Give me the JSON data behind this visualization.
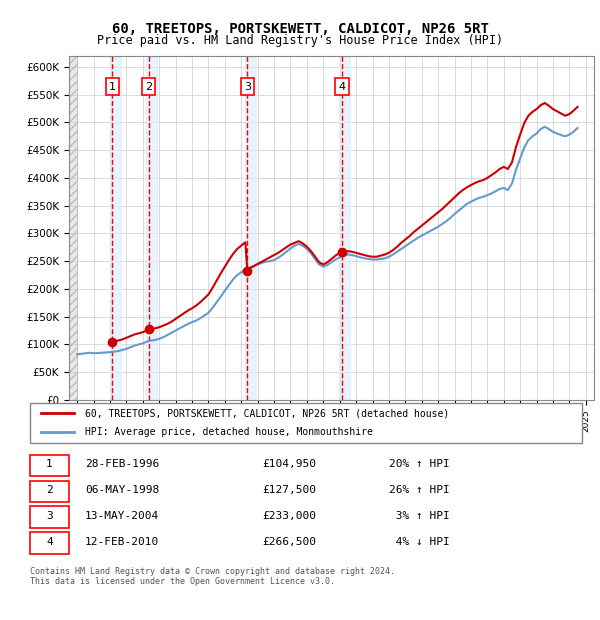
{
  "title": "60, TREETOPS, PORTSKEWETT, CALDICOT, NP26 5RT",
  "subtitle": "Price paid vs. HM Land Registry's House Price Index (HPI)",
  "footer": "Contains HM Land Registry data © Crown copyright and database right 2024.\nThis data is licensed under the Open Government Licence v3.0.",
  "legend_line1": "60, TREETOPS, PORTSKEWETT, CALDICOT, NP26 5RT (detached house)",
  "legend_line2": "HPI: Average price, detached house, Monmouthshire",
  "transactions": [
    {
      "num": 1,
      "date": "28-FEB-1996",
      "price": 104950,
      "pct": "20%",
      "dir": "↑",
      "year": 1996.15
    },
    {
      "num": 2,
      "date": "06-MAY-1998",
      "price": 127500,
      "pct": "26%",
      "dir": "↑",
      "year": 1998.35
    },
    {
      "num": 3,
      "date": "13-MAY-2004",
      "price": 233000,
      "pct": "3%",
      "dir": "↑",
      "year": 2004.37
    },
    {
      "num": 4,
      "date": "12-FEB-2010",
      "price": 266500,
      "pct": "4%",
      "dir": "↓",
      "year": 2010.12
    }
  ],
  "ylim": [
    0,
    620000
  ],
  "yticks": [
    0,
    50000,
    100000,
    150000,
    200000,
    250000,
    300000,
    350000,
    400000,
    450000,
    500000,
    550000,
    600000
  ],
  "xlim": [
    1993.5,
    2025.5
  ],
  "xticks": [
    1994,
    1995,
    1996,
    1997,
    1998,
    1999,
    2000,
    2001,
    2002,
    2003,
    2004,
    2005,
    2006,
    2007,
    2008,
    2009,
    2010,
    2011,
    2012,
    2013,
    2014,
    2015,
    2016,
    2017,
    2018,
    2019,
    2020,
    2021,
    2022,
    2023,
    2024,
    2025
  ],
  "hpi_color": "#6699cc",
  "price_color": "#cc0000",
  "transaction_color": "#cc0000",
  "shading_color": "#ddeeff",
  "hatch_color": "#cccccc",
  "grid_color": "#cccccc",
  "background_left_color": "#f0f0f0",
  "hpi_data": {
    "years": [
      1994.0,
      1994.25,
      1994.5,
      1994.75,
      1995.0,
      1995.25,
      1995.5,
      1995.75,
      1996.0,
      1996.25,
      1996.5,
      1996.75,
      1997.0,
      1997.25,
      1997.5,
      1997.75,
      1998.0,
      1998.25,
      1998.5,
      1998.75,
      1999.0,
      1999.25,
      1999.5,
      1999.75,
      2000.0,
      2000.25,
      2000.5,
      2000.75,
      2001.0,
      2001.25,
      2001.5,
      2001.75,
      2002.0,
      2002.25,
      2002.5,
      2002.75,
      2003.0,
      2003.25,
      2003.5,
      2003.75,
      2004.0,
      2004.25,
      2004.5,
      2004.75,
      2005.0,
      2005.25,
      2005.5,
      2005.75,
      2006.0,
      2006.25,
      2006.5,
      2006.75,
      2007.0,
      2007.25,
      2007.5,
      2007.75,
      2008.0,
      2008.25,
      2008.5,
      2008.75,
      2009.0,
      2009.25,
      2009.5,
      2009.75,
      2010.0,
      2010.25,
      2010.5,
      2010.75,
      2011.0,
      2011.25,
      2011.5,
      2011.75,
      2012.0,
      2012.25,
      2012.5,
      2012.75,
      2013.0,
      2013.25,
      2013.5,
      2013.75,
      2014.0,
      2014.25,
      2014.5,
      2014.75,
      2015.0,
      2015.25,
      2015.5,
      2015.75,
      2016.0,
      2016.25,
      2016.5,
      2016.75,
      2017.0,
      2017.25,
      2017.5,
      2017.75,
      2018.0,
      2018.25,
      2018.5,
      2018.75,
      2019.0,
      2019.25,
      2019.5,
      2019.75,
      2020.0,
      2020.25,
      2020.5,
      2020.75,
      2021.0,
      2021.25,
      2021.5,
      2021.75,
      2022.0,
      2022.25,
      2022.5,
      2022.75,
      2023.0,
      2023.25,
      2023.5,
      2023.75,
      2024.0,
      2024.25,
      2024.5
    ],
    "values": [
      82000,
      83000,
      84000,
      85000,
      84000,
      84500,
      85000,
      85500,
      86000,
      87000,
      88000,
      90000,
      92000,
      95000,
      98000,
      100000,
      102000,
      105000,
      107000,
      108000,
      110000,
      113000,
      117000,
      121000,
      125000,
      129000,
      133000,
      137000,
      140000,
      143000,
      147000,
      152000,
      157000,
      166000,
      176000,
      186000,
      197000,
      207000,
      217000,
      225000,
      230000,
      235000,
      238000,
      241000,
      244000,
      247000,
      249000,
      250000,
      252000,
      256000,
      261000,
      267000,
      273000,
      278000,
      281000,
      278000,
      272000,
      264000,
      254000,
      244000,
      240000,
      243000,
      248000,
      253000,
      257000,
      260000,
      262000,
      261000,
      259000,
      257000,
      255000,
      254000,
      253000,
      253000,
      254000,
      255000,
      258000,
      262000,
      267000,
      272000,
      277000,
      282000,
      287000,
      292000,
      296000,
      300000,
      304000,
      308000,
      312000,
      317000,
      322000,
      328000,
      335000,
      341000,
      347000,
      353000,
      357000,
      361000,
      364000,
      366000,
      369000,
      372000,
      376000,
      380000,
      382000,
      378000,
      390000,
      415000,
      435000,
      455000,
      468000,
      475000,
      480000,
      488000,
      492000,
      488000,
      483000,
      480000,
      477000,
      475000,
      478000,
      483000,
      490000
    ]
  },
  "price_data": {
    "years": [
      1994.0,
      1994.5,
      1995.0,
      1995.5,
      1996.15,
      1996.5,
      1996.75,
      1997.0,
      1997.25,
      1997.5,
      1997.75,
      1998.0,
      1998.25,
      1998.35,
      1998.5,
      1998.75,
      1999.0,
      1999.25,
      1999.5,
      1999.75,
      2000.0,
      2000.25,
      2000.5,
      2000.75,
      2001.0,
      2001.25,
      2001.5,
      2001.75,
      2002.0,
      2002.25,
      2002.5,
      2002.75,
      2003.0,
      2003.25,
      2003.5,
      2003.75,
      2004.0,
      2004.25,
      2004.37,
      2004.5,
      2004.75,
      2005.0,
      2005.25,
      2005.5,
      2005.75,
      2006.0,
      2006.25,
      2006.5,
      2006.75,
      2007.0,
      2007.25,
      2007.5,
      2007.75,
      2008.0,
      2008.25,
      2008.5,
      2008.75,
      2009.0,
      2009.25,
      2009.5,
      2009.75,
      2010.0,
      2010.12,
      2010.5,
      2010.75,
      2011.0,
      2011.25,
      2011.5,
      2011.75,
      2012.0,
      2012.25,
      2012.5,
      2012.75,
      2013.0,
      2013.25,
      2013.5,
      2013.75,
      2014.0,
      2014.25,
      2014.5,
      2014.75,
      2015.0,
      2015.25,
      2015.5,
      2015.75,
      2016.0,
      2016.25,
      2016.5,
      2016.75,
      2017.0,
      2017.25,
      2017.5,
      2017.75,
      2018.0,
      2018.25,
      2018.5,
      2018.75,
      2019.0,
      2019.25,
      2019.5,
      2019.75,
      2020.0,
      2020.25,
      2020.5,
      2020.75,
      2021.0,
      2021.25,
      2021.5,
      2021.75,
      2022.0,
      2022.25,
      2022.5,
      2022.75,
      2023.0,
      2023.25,
      2023.5,
      2023.75,
      2024.0,
      2024.25,
      2024.5
    ],
    "values": [
      null,
      null,
      null,
      null,
      104950,
      107000,
      109000,
      112000,
      115000,
      118000,
      120000,
      122000,
      125000,
      127500,
      128000,
      129000,
      131000,
      134000,
      137000,
      141000,
      146000,
      151000,
      156000,
      161000,
      165000,
      170000,
      176000,
      183000,
      190000,
      202000,
      215000,
      228000,
      240000,
      252000,
      263000,
      272000,
      278000,
      284000,
      233000,
      237000,
      241000,
      245000,
      249000,
      253000,
      257000,
      261000,
      265000,
      270000,
      275000,
      280000,
      283000,
      286000,
      282000,
      276000,
      268000,
      258000,
      248000,
      244000,
      248000,
      254000,
      260000,
      265000,
      266500,
      268000,
      267000,
      265000,
      263000,
      261000,
      259000,
      258000,
      258000,
      260000,
      262000,
      265000,
      270000,
      276000,
      283000,
      289000,
      295000,
      302000,
      308000,
      314000,
      320000,
      326000,
      332000,
      338000,
      344000,
      351000,
      358000,
      365000,
      372000,
      378000,
      383000,
      387000,
      391000,
      394000,
      396000,
      400000,
      405000,
      410000,
      416000,
      420000,
      416000,
      428000,
      456000,
      478000,
      499000,
      512000,
      519000,
      524000,
      531000,
      535000,
      530000,
      524000,
      520000,
      516000,
      512000,
      515000,
      521000,
      528000
    ]
  }
}
